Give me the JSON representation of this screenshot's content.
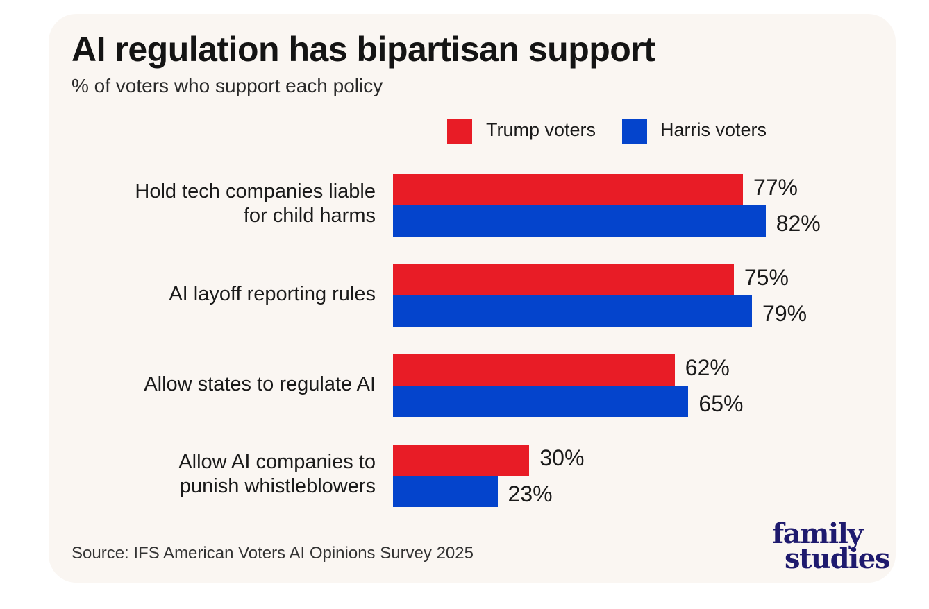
{
  "chart_data": {
    "type": "bar",
    "orientation": "horizontal",
    "title": "AI regulation has bipartisan support",
    "subtitle": "% of voters who support each policy",
    "categories": [
      "Hold tech companies liable\nfor child harms",
      "AI layoff reporting rules",
      "Allow states to regulate AI",
      "Allow AI companies to\npunish whistleblowers"
    ],
    "series": [
      {
        "name": "Trump voters",
        "color": "#e81c26",
        "values": [
          77,
          75,
          62,
          30
        ],
        "labels": [
          "77%",
          "75%",
          "62%",
          "30%"
        ]
      },
      {
        "name": "Harris voters",
        "color": "#0444cc",
        "values": [
          82,
          79,
          65,
          23
        ],
        "labels": [
          "82%",
          "79%",
          "65%",
          "23%"
        ]
      }
    ],
    "xlim": [
      0,
      100
    ],
    "grid": false,
    "legend_position": "top-right",
    "source": "Source: IFS American Voters AI Opinions Survey 2025"
  },
  "logo": {
    "line1": "family",
    "line2": "studies"
  }
}
